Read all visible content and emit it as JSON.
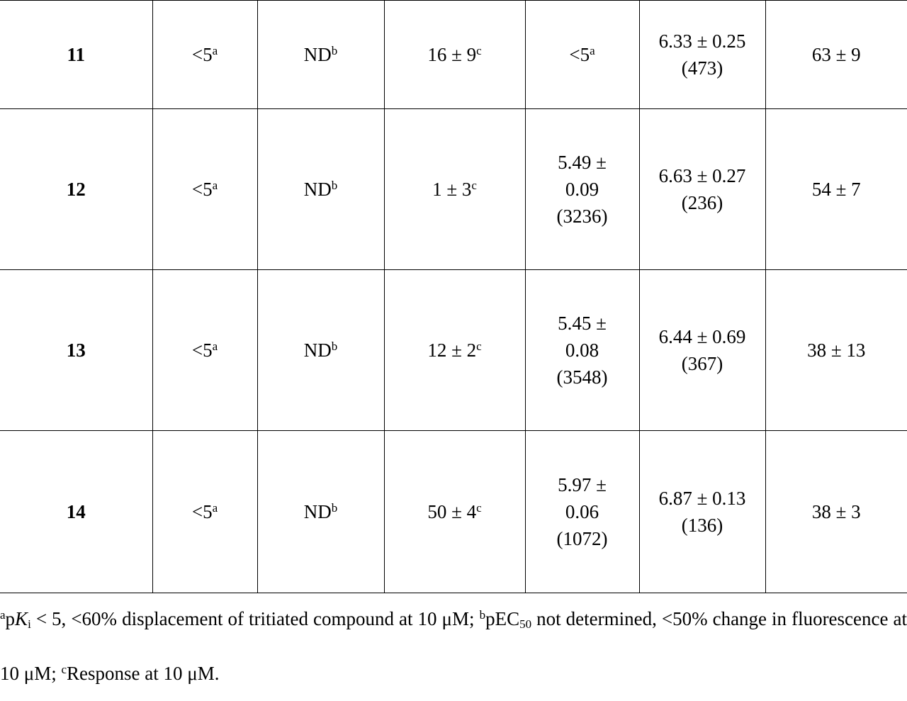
{
  "table": {
    "rows": [
      [
        {
          "text": "11"
        },
        {
          "text": "<5",
          "sup": "a"
        },
        {
          "text": "ND",
          "sup": "b"
        },
        {
          "text": "16 ± 9",
          "sup": "c"
        },
        {
          "text": "<5",
          "sup": "a"
        },
        {
          "text": "6.33 ± 0.25 (473)"
        },
        {
          "text": "63 ± 9"
        }
      ],
      [
        {
          "text": "12"
        },
        {
          "text": "<5",
          "sup": "a"
        },
        {
          "text": "ND",
          "sup": "b"
        },
        {
          "text": "1 ± 3",
          "sup": "c"
        },
        {
          "text": "5.49 ± 0.09 (3236)"
        },
        {
          "text": "6.63 ± 0.27 (236)"
        },
        {
          "text": "54 ± 7"
        }
      ],
      [
        {
          "text": "13"
        },
        {
          "text": "<5",
          "sup": "a"
        },
        {
          "text": "ND",
          "sup": "b"
        },
        {
          "text": "12 ± 2",
          "sup": "c"
        },
        {
          "text": "5.45 ± 0.08 (3548)"
        },
        {
          "text": "6.44 ± 0.69 (367)"
        },
        {
          "text": "38 ± 13"
        }
      ],
      [
        {
          "text": "14"
        },
        {
          "text": "<5",
          "sup": "a"
        },
        {
          "text": "ND",
          "sup": "b"
        },
        {
          "text": "50 ± 4",
          "sup": "c"
        },
        {
          "text": "5.97 ± 0.06 (1072)"
        },
        {
          "text": "6.87 ± 0.13 (136)"
        },
        {
          "text": "38 ± 3"
        }
      ]
    ]
  },
  "footnote": [
    "a",
    "p",
    "K",
    "i",
    " < 5, <60% displacement of tritiated compound at 10 μM; ",
    "b",
    "pEC",
    "50",
    " not determined, <50% change in fluorescence at 10 μM; ",
    "c",
    "Response at 10 μM."
  ]
}
